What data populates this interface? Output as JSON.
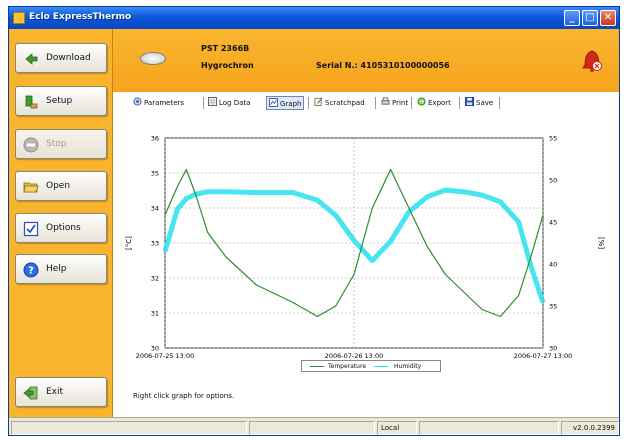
{
  "window": {
    "title": "Eclo ExpressThermo"
  },
  "nav": [
    {
      "label": "Download",
      "enabled": true,
      "icon": "download-icon"
    },
    {
      "label": "Setup",
      "enabled": true,
      "icon": "setup-icon"
    },
    {
      "label": "Stop",
      "enabled": false,
      "icon": "stop-icon"
    },
    {
      "label": "Open",
      "enabled": true,
      "icon": "folder-open-icon"
    },
    {
      "label": "Options",
      "enabled": true,
      "icon": "options-checkbox-icon"
    },
    {
      "label": "Help",
      "enabled": true,
      "icon": "help-icon"
    }
  ],
  "exit_label": "Exit",
  "device": {
    "id": "PST 2366B",
    "type": "Hygrochron",
    "serial": "Serial N.: 4105310100000056"
  },
  "toolbar": {
    "parameters": "Parameters",
    "log_data": "Log Data",
    "graph": "Graph",
    "scratchpad": "Scratchpad",
    "print": "Print",
    "export": "Export",
    "save": "Save"
  },
  "hint": "Right click graph for options.",
  "status": {
    "mode": "Local",
    "version": "v2.0.0.2399"
  },
  "colors": {
    "temperature": "#2e8b2e",
    "humidity": "#26e0ec",
    "accent": "#f7ae26"
  },
  "chart_data": {
    "type": "line",
    "x_ticks": [
      "2006-07-25 13:00",
      "2006-07-26 13:00",
      "2006-07-27 13:00"
    ],
    "y_label": "[°C]",
    "y_ticks": [
      "30",
      "31",
      "32",
      "33",
      "34",
      "35",
      "36"
    ],
    "ylim": [
      30,
      36
    ],
    "y2_label": "[%]",
    "y2_ticks": [
      "30",
      "35",
      "40",
      "45",
      "50",
      "55"
    ],
    "y2lim": [
      30,
      55
    ],
    "grid": true,
    "legend_position": "bottom",
    "series": [
      {
        "name": "Temperature",
        "axis": "left",
        "x": [
          0,
          0.04,
          0.07,
          0.1,
          0.14,
          0.2,
          0.3,
          0.42,
          0.5,
          0.56,
          0.62,
          0.68,
          0.74,
          0.8,
          0.86,
          0.92,
          0.98,
          1.04,
          1.1,
          1.16,
          1.2,
          1.24
        ],
        "values": [
          33.8,
          34.6,
          35.1,
          34.4,
          33.3,
          32.6,
          31.8,
          31.3,
          30.9,
          31.2,
          32.1,
          34.0,
          35.1,
          34.0,
          32.9,
          32.1,
          31.6,
          31.1,
          30.9,
          31.5,
          32.6,
          33.8
        ]
      },
      {
        "name": "Humidity",
        "axis": "right",
        "x": [
          0,
          0.04,
          0.07,
          0.1,
          0.14,
          0.2,
          0.3,
          0.42,
          0.5,
          0.56,
          0.62,
          0.68,
          0.74,
          0.8,
          0.86,
          0.92,
          0.98,
          1.04,
          1.1,
          1.16,
          1.2,
          1.24
        ],
        "values": [
          41.5,
          46.5,
          47.8,
          48.3,
          48.6,
          48.6,
          48.5,
          48.5,
          47.6,
          45.8,
          42.8,
          40.4,
          42.7,
          46.2,
          48.0,
          48.8,
          48.6,
          48.2,
          47.4,
          45.0,
          39.8,
          35.4
        ]
      }
    ]
  }
}
